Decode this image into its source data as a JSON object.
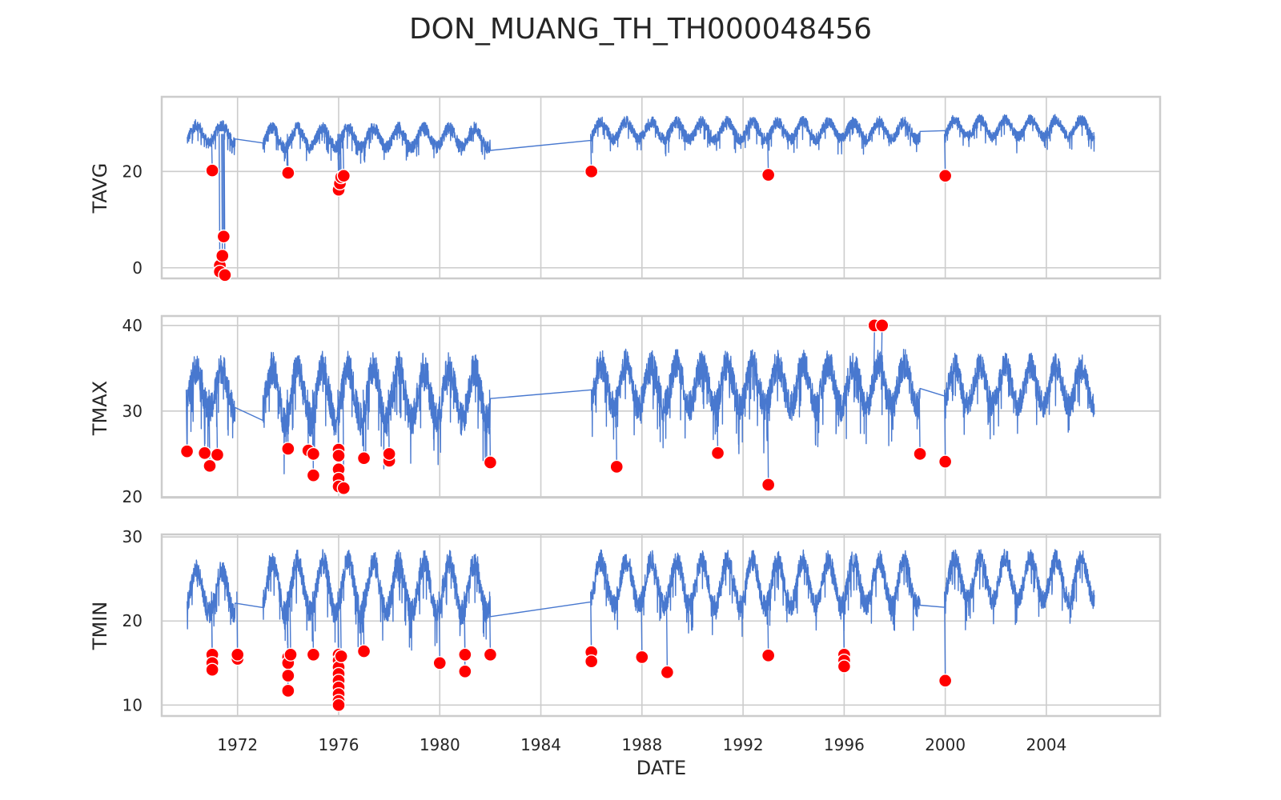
{
  "chart_data": {
    "type": "line",
    "title": "DON_MUANG_TH_TH000048456",
    "xlabel": "DATE",
    "xlim": [
      1969.0,
      2008.5
    ],
    "x_ticks": [
      1972,
      1976,
      1980,
      1984,
      1988,
      1992,
      1996,
      2000,
      2004
    ],
    "grid": true,
    "line_color": "#4878cf",
    "anomaly_color": "#ff0000",
    "panels": [
      {
        "ylabel": "TAVG",
        "ylim": [
          -2.2,
          35.5
        ],
        "y_ticks": [
          0,
          20
        ],
        "segments": [
          {
            "start": 1970.0,
            "end": 1971.9,
            "base": 27.8,
            "amp": 1.8,
            "noise": 1.2
          },
          {
            "start": 1973.0,
            "end": 1982.0,
            "base": 27.0,
            "amp": 2.0,
            "noise": 1.3
          },
          {
            "start": 1986.0,
            "end": 1999.0,
            "base": 28.5,
            "amp": 1.8,
            "noise": 1.2
          },
          {
            "start": 2000.0,
            "end": 2005.9,
            "base": 29.0,
            "amp": 1.8,
            "noise": 1.1
          }
        ],
        "anomalies": [
          [
            1971.0,
            20.2
          ],
          [
            1971.3,
            0.5
          ],
          [
            1971.3,
            -0.8
          ],
          [
            1971.4,
            2.5
          ],
          [
            1971.45,
            6.5
          ],
          [
            1971.5,
            -1.5
          ],
          [
            1974.0,
            19.7
          ],
          [
            1976.0,
            16.2
          ],
          [
            1976.05,
            17.5
          ],
          [
            1976.1,
            18.8
          ],
          [
            1976.2,
            19.1
          ],
          [
            1986.0,
            20.0
          ],
          [
            1993.0,
            19.3
          ],
          [
            2000.0,
            19.1
          ]
        ]
      },
      {
        "ylabel": "TMAX",
        "ylim": [
          19.9,
          41.1
        ],
        "y_ticks": [
          20,
          30,
          40
        ],
        "segments": [
          {
            "start": 1970.0,
            "end": 1971.9,
            "base": 32.5,
            "amp": 2.5,
            "noise": 1.8
          },
          {
            "start": 1973.0,
            "end": 1982.0,
            "base": 32.0,
            "amp": 3.0,
            "noise": 2.0
          },
          {
            "start": 1986.0,
            "end": 1999.0,
            "base": 33.0,
            "amp": 2.5,
            "noise": 1.8
          },
          {
            "start": 2000.0,
            "end": 2005.9,
            "base": 33.0,
            "amp": 2.3,
            "noise": 1.5
          }
        ],
        "anomalies": [
          [
            1970.0,
            25.3
          ],
          [
            1970.7,
            25.1
          ],
          [
            1970.9,
            23.6
          ],
          [
            1971.2,
            24.9
          ],
          [
            1974.0,
            25.6
          ],
          [
            1974.8,
            25.4
          ],
          [
            1975.0,
            22.5
          ],
          [
            1975.0,
            25.0
          ],
          [
            1976.0,
            25.5
          ],
          [
            1976.0,
            24.8
          ],
          [
            1976.0,
            23.2
          ],
          [
            1976.0,
            22.1
          ],
          [
            1976.0,
            21.2
          ],
          [
            1976.2,
            21.0
          ],
          [
            1977.0,
            24.5
          ],
          [
            1978.0,
            24.2
          ],
          [
            1978.0,
            25.0
          ],
          [
            1982.0,
            24.0
          ],
          [
            1987.0,
            23.5
          ],
          [
            1991.0,
            25.1
          ],
          [
            1993.0,
            21.4
          ],
          [
            1997.2,
            40.0
          ],
          [
            1997.5,
            40.0
          ],
          [
            1999.0,
            25.0
          ],
          [
            2000.0,
            24.1
          ]
        ]
      },
      {
        "ylabel": "TMIN",
        "ylim": [
          8.7,
          30.3
        ],
        "y_ticks": [
          10,
          20,
          30
        ],
        "segments": [
          {
            "start": 1970.0,
            "end": 1971.9,
            "base": 23.5,
            "amp": 2.5,
            "noise": 1.3
          },
          {
            "start": 1973.0,
            "end": 1982.0,
            "base": 24.0,
            "amp": 3.0,
            "noise": 1.5
          },
          {
            "start": 1986.0,
            "end": 1999.0,
            "base": 24.5,
            "amp": 2.7,
            "noise": 1.3
          },
          {
            "start": 2000.0,
            "end": 2005.9,
            "base": 25.0,
            "amp": 2.5,
            "noise": 1.2
          }
        ],
        "anomalies": [
          [
            1971.0,
            16.0
          ],
          [
            1971.0,
            15.0
          ],
          [
            1971.0,
            14.2
          ],
          [
            1972.0,
            15.5
          ],
          [
            1972.0,
            16.0
          ],
          [
            1974.0,
            15.7
          ],
          [
            1974.0,
            15.0
          ],
          [
            1974.0,
            13.5
          ],
          [
            1974.0,
            11.7
          ],
          [
            1974.1,
            16.0
          ],
          [
            1975.0,
            16.0
          ],
          [
            1976.0,
            16.0
          ],
          [
            1976.0,
            15.3
          ],
          [
            1976.0,
            14.5
          ],
          [
            1976.0,
            13.7
          ],
          [
            1976.0,
            12.9
          ],
          [
            1976.0,
            12.1
          ],
          [
            1976.0,
            11.3
          ],
          [
            1976.0,
            10.5
          ],
          [
            1976.0,
            10.0
          ],
          [
            1976.1,
            15.8
          ],
          [
            1977.0,
            16.4
          ],
          [
            1980.0,
            15.0
          ],
          [
            1981.0,
            16.0
          ],
          [
            1981.0,
            14.0
          ],
          [
            1982.0,
            16.0
          ],
          [
            1986.0,
            16.3
          ],
          [
            1986.0,
            15.2
          ],
          [
            1988.0,
            15.7
          ],
          [
            1989.0,
            13.9
          ],
          [
            1993.0,
            15.9
          ],
          [
            1996.0,
            16.0
          ],
          [
            1996.0,
            15.3
          ],
          [
            1996.0,
            14.6
          ],
          [
            2000.0,
            12.9
          ]
        ]
      }
    ]
  }
}
